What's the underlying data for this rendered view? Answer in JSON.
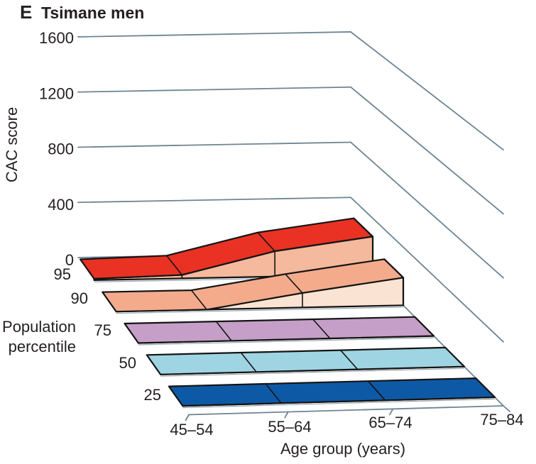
{
  "title": {
    "panel_label": "E",
    "text": "Tsimane men"
  },
  "y_axis": {
    "label": "CAC score",
    "ticks": [
      {
        "label": "0",
        "value": 0
      },
      {
        "label": "400",
        "value": 400
      },
      {
        "label": "800",
        "value": 800
      },
      {
        "label": "1200",
        "value": 1200
      },
      {
        "label": "1600",
        "value": 1600
      }
    ]
  },
  "x_axis": {
    "label": "Age group (years)",
    "ticks": [
      "45–54",
      "55–64",
      "65–74",
      "75–84"
    ]
  },
  "depth_axis": {
    "label_line1": "Population",
    "label_line2": "percentile",
    "ticks": [
      "95",
      "90",
      "75",
      "50",
      "25"
    ]
  },
  "chart_data": {
    "type": "area",
    "variant": "3d-ribbon",
    "title": "E Tsimane men",
    "xlabel": "Age group (years)",
    "ylabel": "CAC score",
    "depth_label": "Population percentile",
    "categories": [
      "45–54",
      "55–64",
      "65–74",
      "75–84"
    ],
    "ylim": [
      0,
      1600
    ],
    "ytick_interval": 400,
    "grid": "back-and-side-wall gridlines only",
    "series": [
      {
        "name": "95",
        "values": [
          10,
          25,
          180,
          270
        ],
        "top_color": "#e93223",
        "side_color": "#f5b99d"
      },
      {
        "name": "90",
        "values": [
          0,
          0,
          100,
          190
        ],
        "top_color": "#f3ab8c",
        "side_color": "#fbe3d3"
      },
      {
        "name": "75",
        "values": [
          0,
          0,
          0,
          0
        ],
        "top_color": "#c59fc8",
        "side_color": "#c59fc8"
      },
      {
        "name": "50",
        "values": [
          0,
          0,
          0,
          0
        ],
        "top_color": "#9fd5e3",
        "side_color": "#9fd5e3"
      },
      {
        "name": "25",
        "values": [
          0,
          0,
          0,
          0
        ],
        "top_color": "#0e59a5",
        "side_color": "#0e59a5"
      }
    ],
    "colors": {
      "gridline": "#6d8494",
      "outline": "#141414",
      "text": "#231f20"
    }
  }
}
